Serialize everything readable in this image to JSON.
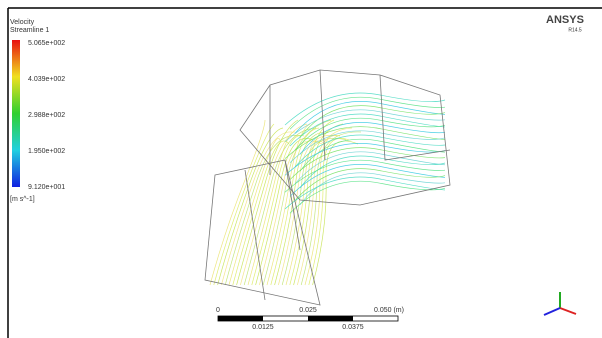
{
  "legend": {
    "title": "Velocity",
    "subtitle": "Streamline 1",
    "labels": [
      "5.065e+002",
      "4.039e+002",
      "2.988e+002",
      "1.950e+002",
      "9.120e+001"
    ],
    "units": "[m s^-1]"
  },
  "brand": {
    "name": "ANSYS",
    "version": "R14.5"
  },
  "scale_bar": {
    "top_labels": [
      "0",
      "0.025",
      "0.050 (m)"
    ],
    "bottom_labels": [
      "0.0125",
      "0.0375"
    ]
  }
}
